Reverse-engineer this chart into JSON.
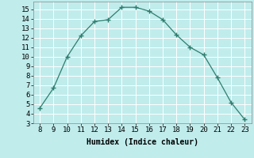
{
  "x": [
    8,
    9,
    10,
    11,
    12,
    13,
    14,
    15,
    16,
    17,
    18,
    19,
    20,
    21,
    22,
    23
  ],
  "y": [
    4.6,
    6.7,
    10.0,
    12.2,
    13.7,
    13.9,
    15.2,
    15.2,
    14.8,
    13.9,
    12.3,
    11.0,
    10.2,
    7.8,
    5.2,
    3.4
  ],
  "xlim": [
    7.5,
    23.5
  ],
  "ylim": [
    3,
    15.8
  ],
  "xticks": [
    8,
    9,
    10,
    11,
    12,
    13,
    14,
    15,
    16,
    17,
    18,
    19,
    20,
    21,
    22,
    23
  ],
  "yticks": [
    3,
    4,
    5,
    6,
    7,
    8,
    9,
    10,
    11,
    12,
    13,
    14,
    15
  ],
  "xlabel": "Humidex (Indice chaleur)",
  "line_color": "#2e7d6e",
  "marker": "+",
  "bg_color": "#c0ecec",
  "grid_color": "#ffffff",
  "xlabel_fontsize": 7,
  "tick_fontsize": 6.5
}
